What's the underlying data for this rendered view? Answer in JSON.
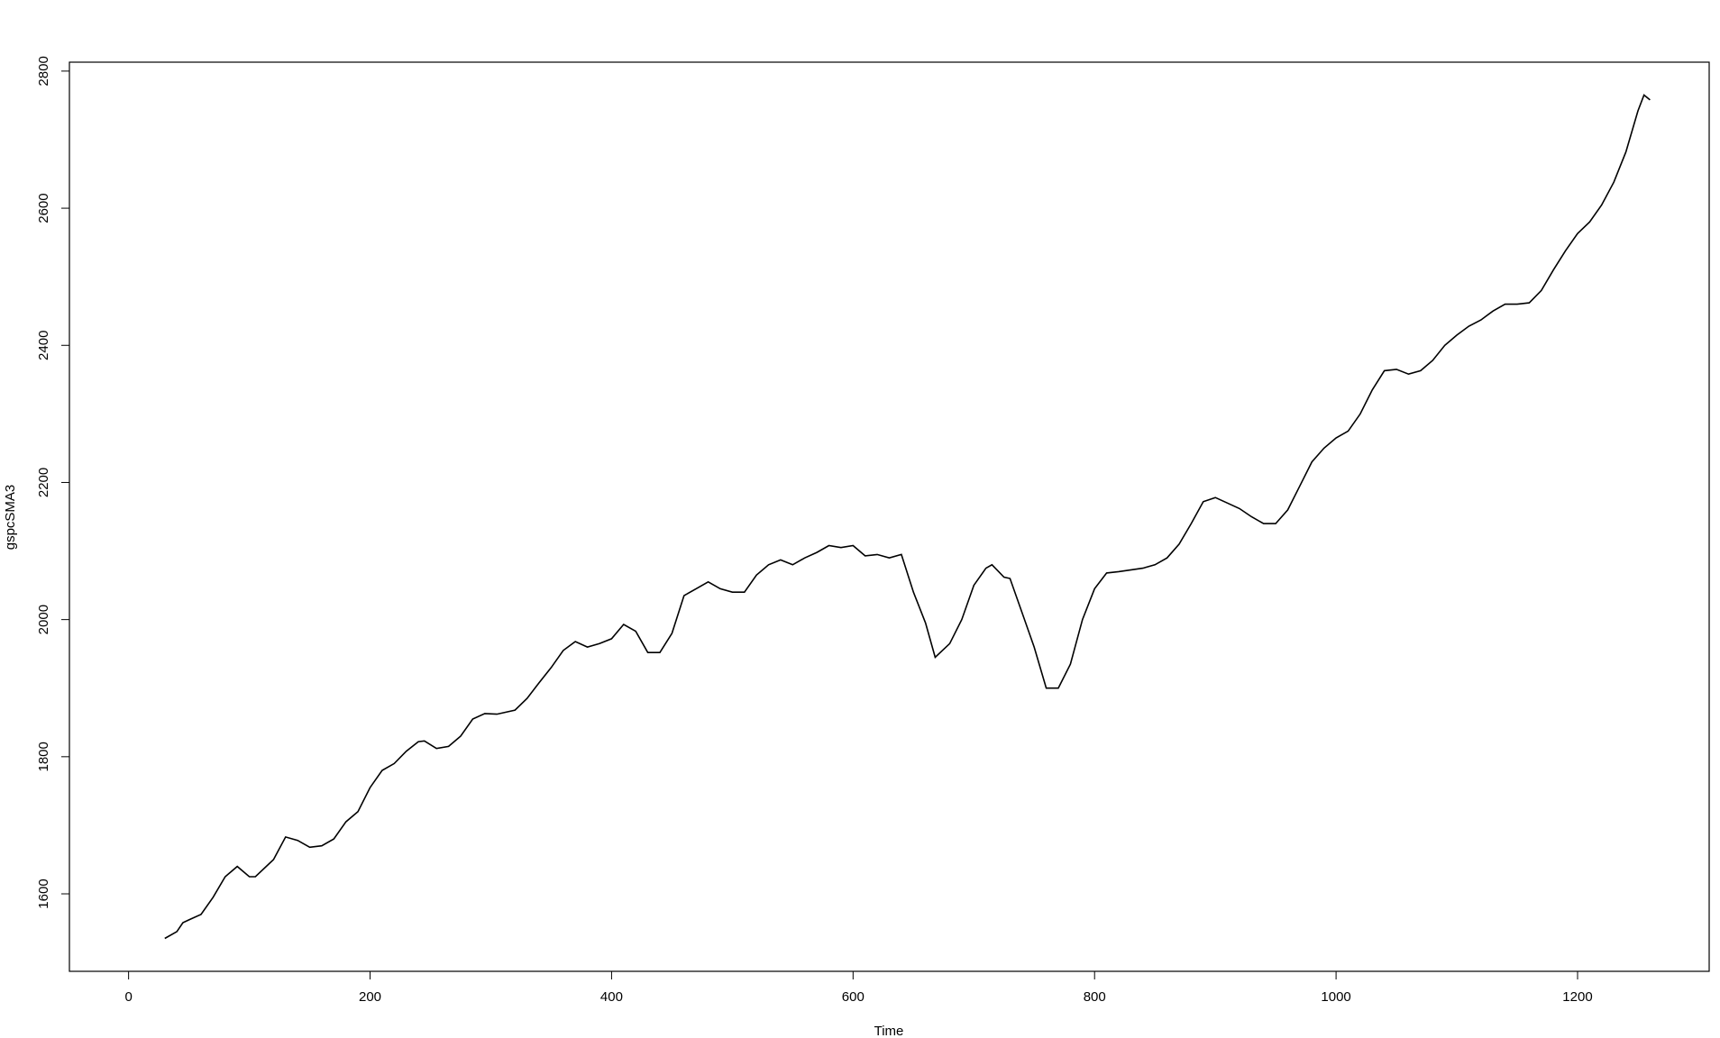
{
  "chart_data": {
    "type": "line",
    "x_label": "Time",
    "y_label": "gspcSMA3",
    "x": [
      30,
      40,
      45,
      50,
      60,
      70,
      80,
      90,
      100,
      105,
      120,
      130,
      140,
      150,
      160,
      170,
      180,
      190,
      200,
      210,
      220,
      230,
      240,
      245,
      255,
      265,
      275,
      285,
      295,
      305,
      320,
      330,
      340,
      350,
      360,
      370,
      380,
      390,
      400,
      410,
      420,
      430,
      440,
      450,
      460,
      470,
      480,
      490,
      500,
      510,
      520,
      530,
      540,
      550,
      560,
      570,
      580,
      590,
      600,
      610,
      620,
      630,
      640,
      650,
      660,
      668,
      680,
      690,
      700,
      710,
      715,
      725,
      730,
      740,
      750,
      760,
      770,
      780,
      790,
      800,
      810,
      820,
      840,
      850,
      860,
      870,
      880,
      890,
      900,
      910,
      920,
      930,
      940,
      950,
      960,
      970,
      980,
      990,
      1000,
      1010,
      1020,
      1030,
      1040,
      1050,
      1060,
      1070,
      1080,
      1090,
      1100,
      1110,
      1120,
      1130,
      1140,
      1150,
      1160,
      1170,
      1180,
      1190,
      1200,
      1210,
      1220,
      1230,
      1240,
      1250,
      1255,
      1260
    ],
    "series": [
      {
        "name": "gspcSMA3",
        "color": "#000000",
        "values": [
          1535,
          1545,
          1558,
          1562,
          1570,
          1595,
          1625,
          1640,
          1625,
          1625,
          1650,
          1683,
          1678,
          1668,
          1670,
          1680,
          1705,
          1720,
          1755,
          1780,
          1790,
          1808,
          1822,
          1823,
          1812,
          1815,
          1830,
          1855,
          1863,
          1862,
          1868,
          1885,
          1908,
          1930,
          1955,
          1968,
          1960,
          1965,
          1972,
          1993,
          1983,
          1952,
          1952,
          1980,
          2035,
          2045,
          2055,
          2045,
          2040,
          2040,
          2065,
          2080,
          2087,
          2080,
          2090,
          2098,
          2108,
          2105,
          2108,
          2093,
          2095,
          2090,
          2095,
          2040,
          1995,
          1945,
          1965,
          2000,
          2050,
          2075,
          2080,
          2062,
          2060,
          2010,
          1960,
          1900,
          1900,
          1935,
          2000,
          2045,
          2068,
          2070,
          2075,
          2080,
          2090,
          2110,
          2140,
          2172,
          2178,
          2170,
          2162,
          2150,
          2140,
          2140,
          2160,
          2195,
          2230,
          2250,
          2265,
          2275,
          2300,
          2335,
          2363,
          2365,
          2358,
          2363,
          2378,
          2400,
          2415,
          2428,
          2437,
          2450,
          2460,
          2460,
          2462,
          2480,
          2510,
          2538,
          2563,
          2580,
          2605,
          2638,
          2682,
          2742,
          2765,
          2758
        ]
      }
    ],
    "xlim": [
      -49,
      1309
    ],
    "ylim": [
      1487,
      2813
    ],
    "xticks": [
      0,
      200,
      400,
      600,
      800,
      1000,
      1200
    ],
    "yticks": [
      1600,
      1800,
      2000,
      2200,
      2400,
      2600,
      2800
    ]
  }
}
